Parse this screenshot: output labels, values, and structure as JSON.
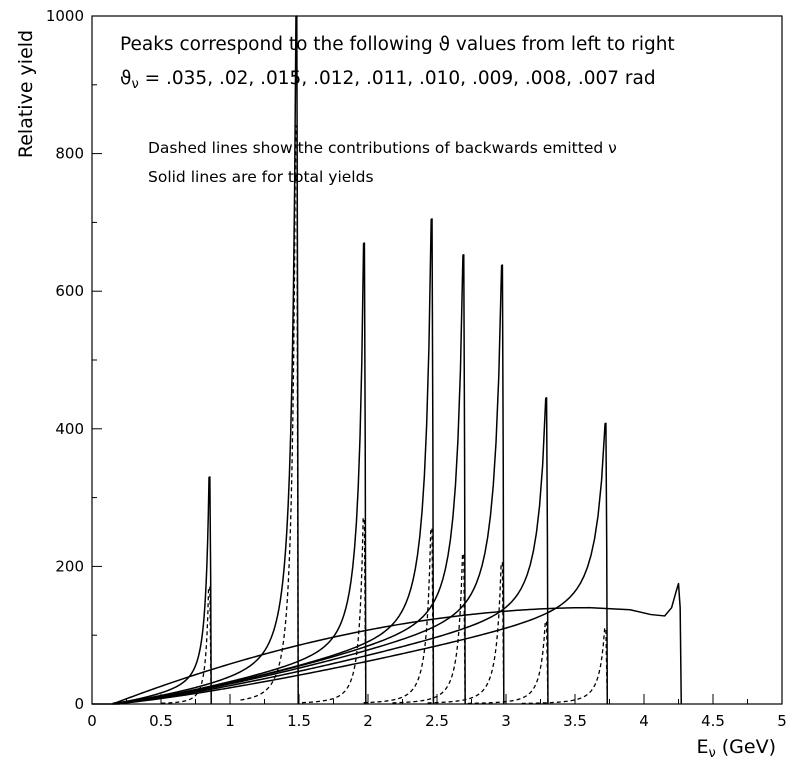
{
  "chart_data": {
    "type": "line",
    "title": "",
    "xlabel": "E",
    "xlabel_subscript": "ν",
    "xlabel_unit": " (GeV)",
    "ylabel": "Relative yield",
    "xlim": [
      0,
      5
    ],
    "ylim": [
      0,
      1000
    ],
    "x_ticks": [
      0,
      0.5,
      1,
      1.5,
      2,
      2.5,
      3,
      3.5,
      4,
      4.5,
      5
    ],
    "x_tick_labels": [
      "0",
      "0.5",
      "1",
      "1.5",
      "2",
      "2.5",
      "3",
      "3.5",
      "4",
      "4.5",
      "5"
    ],
    "y_ticks": [
      0,
      200,
      400,
      600,
      800,
      1000
    ],
    "y_tick_labels": [
      "0",
      "200",
      "400",
      "600",
      "800",
      "1000"
    ],
    "grid": false,
    "annotations": {
      "line1": "Peaks correspond to the following ϑ values from left to right",
      "line2_symbol": "ϑ",
      "line2_subscript": "ν",
      "line2": " = .035, .02, .015, .012, .011, .010, .009, .008, .007 rad",
      "line3": "Dashed lines show the contributions of backwards emitted ν",
      "line4": "Solid lines are for total yields"
    },
    "style": {
      "solid": "total yield",
      "dashed": "backwards emitted contribution",
      "color": "#000000"
    },
    "peaks": [
      {
        "theta": 0.035,
        "edge": 0.86,
        "solid_peak": 330,
        "dashed_peak": 170,
        "base_at_edge": 30
      },
      {
        "theta": 0.02,
        "edge": 1.49,
        "solid_peak": 1000,
        "dashed_peak": 840,
        "base_at_edge": 55
      },
      {
        "theta": 0.015,
        "edge": 1.98,
        "solid_peak": 670,
        "dashed_peak": 270,
        "base_at_edge": 80
      },
      {
        "theta": 0.012,
        "edge": 2.47,
        "solid_peak": 705,
        "dashed_peak": 255,
        "base_at_edge": 105
      },
      {
        "theta": 0.011,
        "edge": 2.7,
        "solid_peak": 653,
        "dashed_peak": 218,
        "base_at_edge": 118
      },
      {
        "theta": 0.01,
        "edge": 2.98,
        "solid_peak": 638,
        "dashed_peak": 205,
        "base_at_edge": 128
      },
      {
        "theta": 0.009,
        "edge": 3.3,
        "solid_peak": 445,
        "dashed_peak": 120,
        "base_at_edge": 135
      },
      {
        "theta": 0.008,
        "edge": 3.73,
        "solid_peak": 408,
        "dashed_peak": 110,
        "base_at_edge": 140
      },
      {
        "theta": 0.007,
        "edge": 4.25,
        "solid_peak": 175,
        "dashed_peak": 0,
        "base_at_edge": 130
      }
    ]
  }
}
